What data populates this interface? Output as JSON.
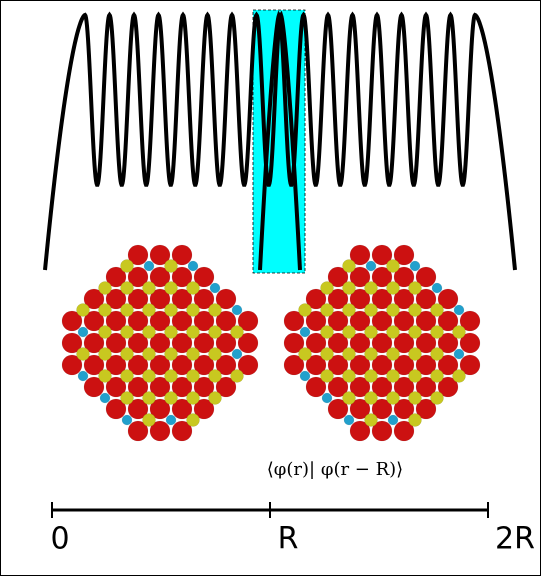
{
  "formula": "⟨φ(r)| φ(r − R)⟩",
  "axis": {
    "labels": [
      "0",
      "R",
      "2R"
    ]
  }
}
